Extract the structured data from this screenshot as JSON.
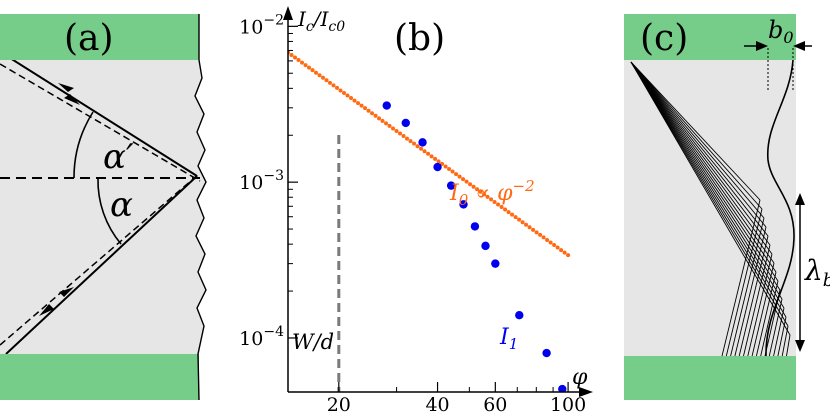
{
  "panel_a": {
    "label": "(a)",
    "angle_alpha": "α",
    "angle_alpha_prime": "α′"
  },
  "panel_b": {
    "label": "(b)",
    "ylabel": "I_c/I_c0",
    "xlabel": "φ",
    "tick_labels_x": [
      "20",
      "40",
      "60",
      "100"
    ],
    "tick_labels_y": [
      "10^-2",
      "10^-3",
      "10^-4"
    ],
    "annot_wd": "W/d",
    "annot_i0": "I_0 ∝ φ^-2",
    "annot_i1": "I_1"
  },
  "panel_c": {
    "label": "(c)",
    "b0_label": "b_0",
    "lambda_label": "λ_b"
  },
  "colors": {
    "green": "#76cd8a",
    "gray_fill": "#e6e6e6",
    "orange": "#ff6a13",
    "blue": "#0000ee",
    "dashed_gray": "#7a7a7a"
  },
  "chart_data": {
    "type": "scatter",
    "xscale": "log",
    "yscale": "log",
    "xlabel": "φ",
    "ylabel": "I_c/I_c0",
    "xlim": [
      14,
      115
    ],
    "ylim": [
      4.5e-05,
      0.012
    ],
    "xticks": [
      20,
      40,
      60,
      100
    ],
    "yticks": [
      0.01,
      0.001,
      0.0001
    ],
    "vline": {
      "x": 20,
      "label": "W/d"
    },
    "series": [
      {
        "name": "I_0 ∝ φ^-2",
        "style": "dotted-line",
        "color": "#ff6a13",
        "x": [
          14,
          18,
          22,
          26,
          30,
          35,
          40,
          45,
          50,
          55,
          60,
          70,
          80,
          90,
          100
        ],
        "y": [
          0.0068,
          0.0053,
          0.0043,
          0.0035,
          0.0029,
          0.0024,
          0.00195,
          0.0016,
          0.00134,
          0.00113,
          0.00097,
          0.00072,
          0.00055,
          0.00043,
          0.00034
        ]
      },
      {
        "name": "I_1",
        "style": "markers",
        "color": "#0000ee",
        "x": [
          28,
          32,
          36,
          40,
          44,
          48,
          52,
          56,
          60,
          71,
          86,
          96
        ],
        "y": [
          0.0031,
          0.0024,
          0.0018,
          0.00125,
          0.00095,
          0.00072,
          0.00052,
          0.00039,
          0.0003,
          0.00014,
          8e-05,
          4.7e-05
        ]
      }
    ]
  }
}
